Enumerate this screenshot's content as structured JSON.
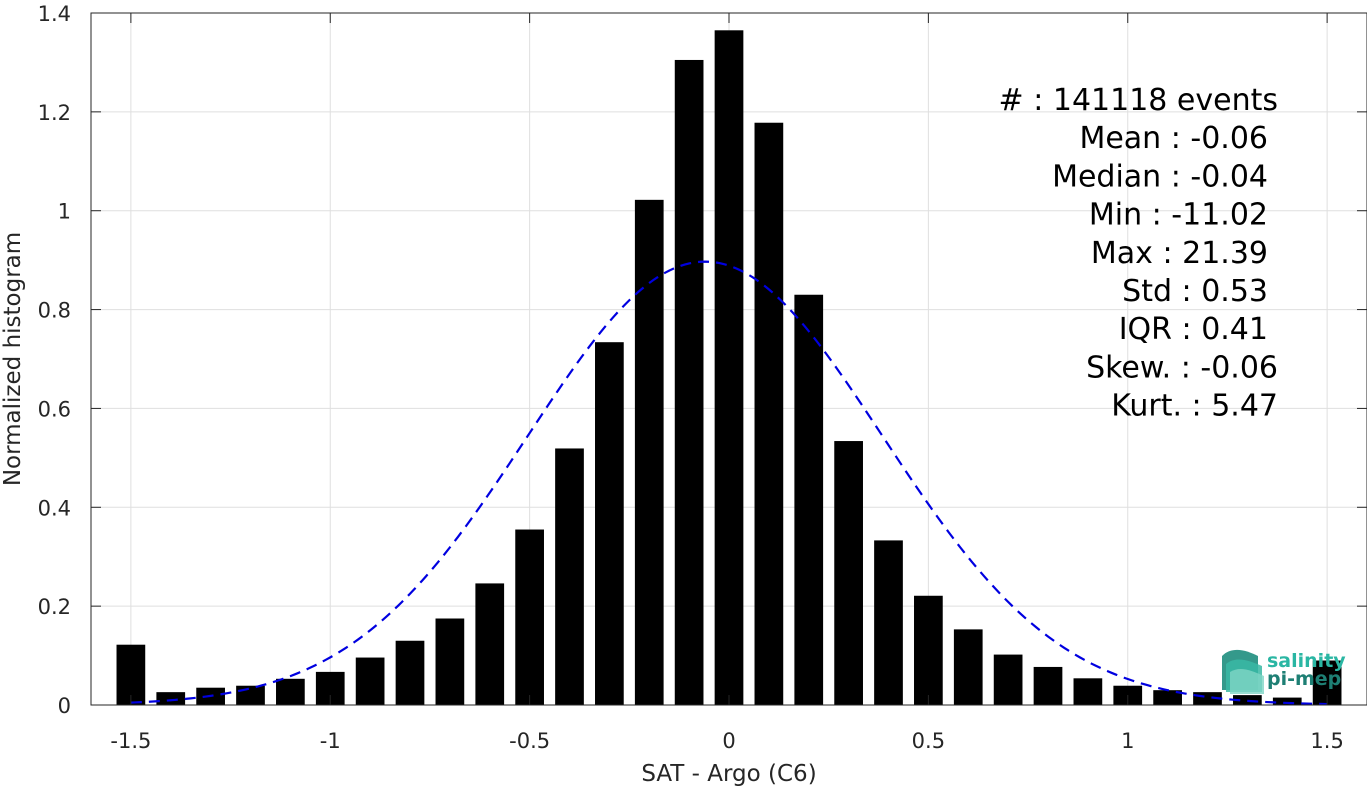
{
  "chart_data": {
    "type": "bar",
    "title": "",
    "xlabel": "SAT - Argo (C6)",
    "ylabel": "Normalized histogram",
    "xlim": [
      -1.6,
      1.6
    ],
    "ylim": [
      0,
      1.4
    ],
    "grid": true,
    "x_ticks": [
      -1.5,
      -1,
      -0.5,
      0,
      0.5,
      1,
      1.5
    ],
    "x_tick_labels": [
      "-1.5",
      "-1",
      "-0.5",
      "0",
      "0.5",
      "1",
      "1.5"
    ],
    "y_ticks": [
      0,
      0.2,
      0.4,
      0.6,
      0.8,
      1,
      1.2,
      1.4
    ],
    "y_tick_labels": [
      "0",
      "0.2",
      "0.4",
      "0.6",
      "0.8",
      "1",
      "1.2",
      "1.4"
    ],
    "bin_width": 0.1,
    "x": [
      -1.5,
      -1.4,
      -1.3,
      -1.2,
      -1.1,
      -1.0,
      -0.9,
      -0.8,
      -0.7,
      -0.6,
      -0.5,
      -0.4,
      -0.3,
      -0.2,
      -0.1,
      0.0,
      0.1,
      0.2,
      0.3,
      0.4,
      0.5,
      0.6,
      0.7,
      0.8,
      0.9,
      1.0,
      1.1,
      1.2,
      1.3,
      1.4,
      1.5
    ],
    "values": [
      0.122,
      0.026,
      0.035,
      0.039,
      0.053,
      0.067,
      0.096,
      0.13,
      0.175,
      0.246,
      0.355,
      0.519,
      0.734,
      1.022,
      1.305,
      1.365,
      1.178,
      0.83,
      0.534,
      0.333,
      0.221,
      0.153,
      0.102,
      0.077,
      0.054,
      0.039,
      0.03,
      0.026,
      0.02,
      0.015,
      0.09
    ],
    "bar_color": "#000000",
    "fit_curve": {
      "style": "dashed",
      "color": "#0000e0",
      "mean": -0.06,
      "std": 0.445,
      "peak": 0.897
    },
    "annotations": [
      "#  : 141118 events",
      "Mean : -0.06",
      "Median : -0.04",
      "Min : -11.02",
      "Max : 21.39",
      "Std : 0.53",
      "IQR : 0.41",
      "Skew. : -0.06",
      "Kurt. : 5.47"
    ]
  },
  "logo": {
    "line1": "salinity",
    "line2": "pi-mep",
    "color1": "#2ab6a3",
    "color2": "#1e7f74"
  }
}
